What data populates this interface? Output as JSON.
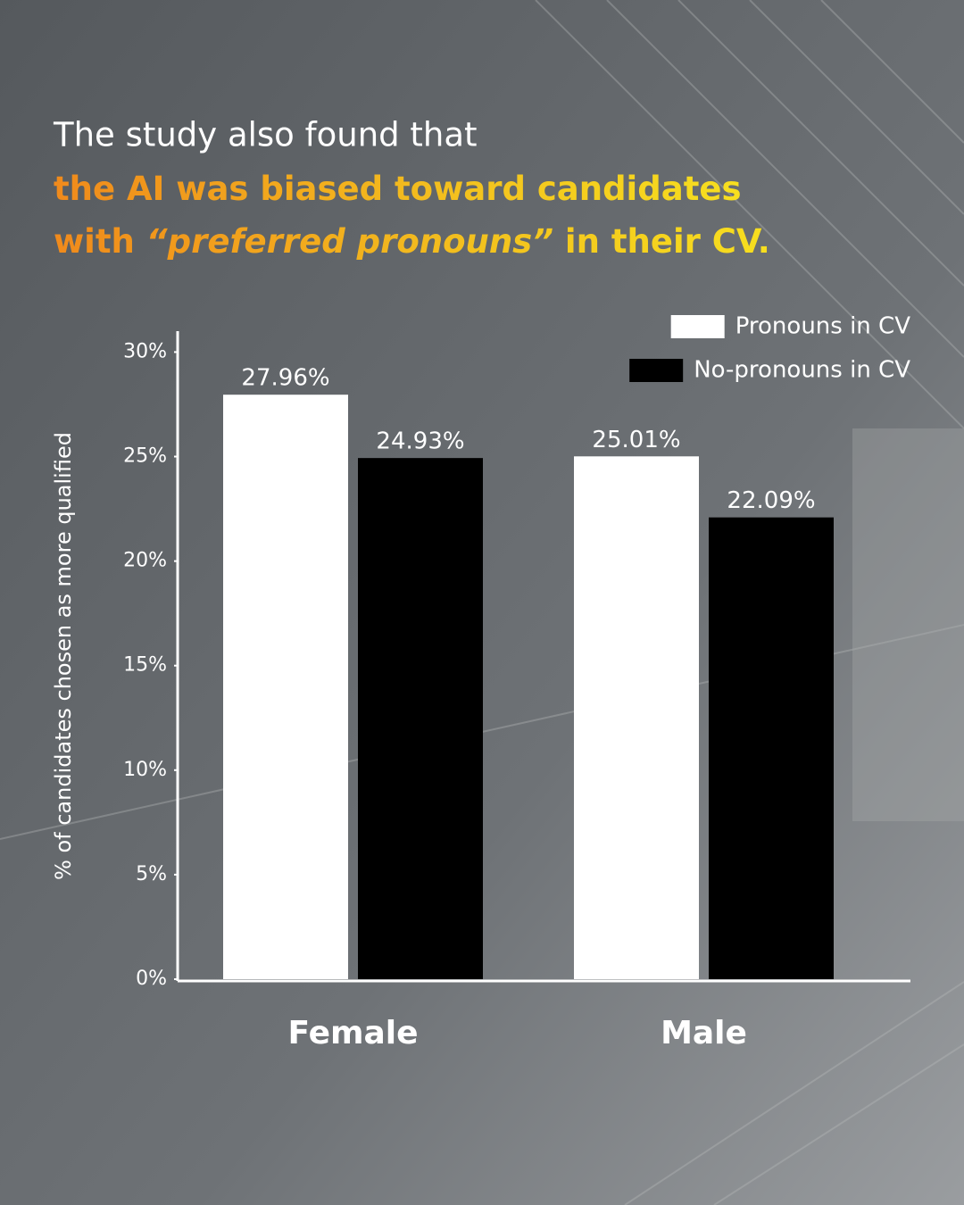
{
  "chart_data": {
    "type": "bar",
    "title": "The study also found that",
    "subtitle": [
      "the AI was biased toward candidates",
      "with ",
      "“preferred pronouns”",
      " in their CV."
    ],
    "y_label": "% of candidates chosen as more qualified",
    "categories": [
      "Female",
      "Male"
    ],
    "series": [
      {
        "name": "Pronouns in CV",
        "color": "#ffffff",
        "values": [
          27.96,
          25.01
        ],
        "value_labels": [
          "27.96%",
          "25.01%"
        ]
      },
      {
        "name": "No-pronouns in CV",
        "color": "#000000",
        "values": [
          24.93,
          22.09
        ],
        "value_labels": [
          "24.93%",
          "22.09%"
        ]
      }
    ],
    "ylim": [
      0,
      31
    ],
    "yticks": [
      {
        "value": 0,
        "label": "0%"
      },
      {
        "value": 5,
        "label": "5%"
      },
      {
        "value": 10,
        "label": "10%"
      },
      {
        "value": 15,
        "label": "15%"
      },
      {
        "value": 20,
        "label": "20%"
      },
      {
        "value": 25,
        "label": "25%"
      },
      {
        "value": 30,
        "label": "30%"
      }
    ],
    "legend": "top-right"
  }
}
